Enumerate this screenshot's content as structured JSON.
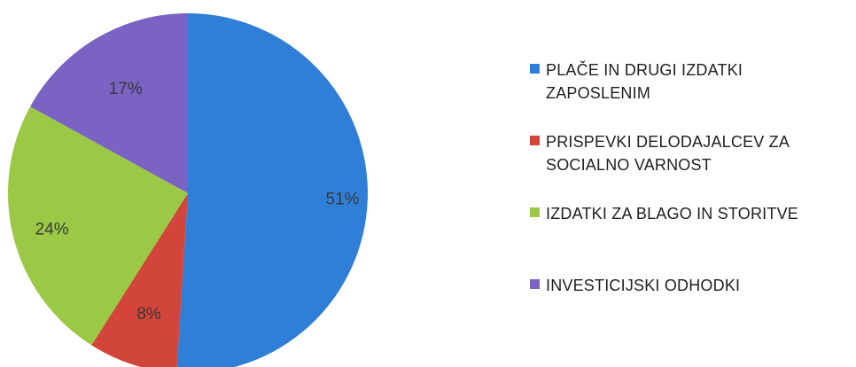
{
  "chart_data": {
    "type": "pie",
    "categories": [
      "PLAČE IN DRUGI IZDATKI ZAPOSLENIM",
      "PRISPEVKI DELODAJALCEV ZA SOCIALNO VARNOST",
      "IZDATKI ZA BLAGO IN STORITVE",
      "INVESTICIJSKI ODHODKI"
    ],
    "values": [
      51,
      8,
      24,
      17
    ],
    "data_labels": [
      "51%",
      "8%",
      "24%",
      "17%"
    ],
    "colors": [
      "#2f7fd9",
      "#d2453a",
      "#9bc945",
      "#7a63c2"
    ],
    "legend_position": "right",
    "title": ""
  }
}
